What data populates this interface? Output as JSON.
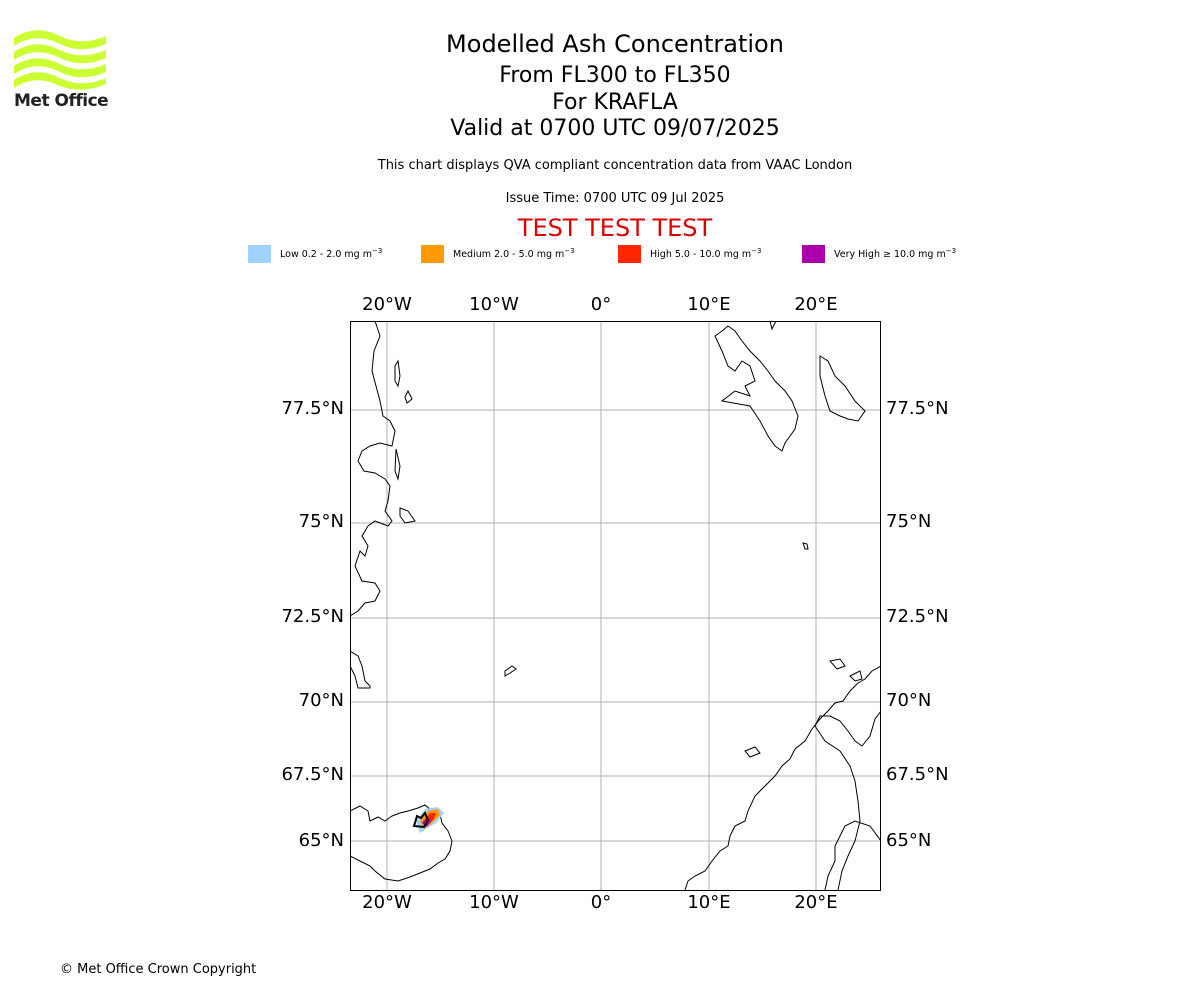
{
  "header": {
    "title": "Modelled Ash Concentration",
    "flight_levels": "From FL300 to FL350",
    "volcano": "For KRAFLA",
    "valid_time": "Valid at 0700 UTC 09/07/2025",
    "description": "This chart displays QVA compliant concentration data from VAAC London",
    "issue_time": "Issue Time: 0700 UTC 09 Jul 2025",
    "test_banner": "TEST TEST TEST"
  },
  "logo": {
    "text": "Met Office",
    "color": "#ccff33"
  },
  "legend": {
    "unit_sup": "−3",
    "items": [
      {
        "label": "Low 0.2 - 2.0 mg m",
        "color": "#a0d2ff"
      },
      {
        "label": "Medium 2.0 - 5.0 mg m",
        "color": "#ff9900"
      },
      {
        "label": "High 5.0 - 10.0 mg m",
        "color": "#ff2600"
      },
      {
        "label": "Very High  ≥  10.0 mg m",
        "color": "#aa00aa"
      }
    ]
  },
  "map": {
    "lon_ticks": [
      "20°W",
      "10°W",
      "0°",
      "10°E",
      "20°E"
    ],
    "lat_ticks": [
      "77.5°N",
      "75°N",
      "72.5°N",
      "70°N",
      "67.5°N",
      "65°N"
    ]
  },
  "footer": {
    "copyright": "© Met Office Crown Copyright"
  }
}
